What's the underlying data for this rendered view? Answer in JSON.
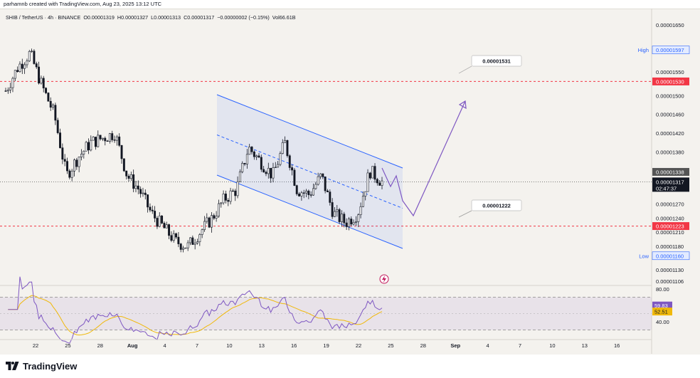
{
  "header": {
    "caption": "parhamnb created with TradingView.com, Aug 23, 2025 13:12 UTC"
  },
  "legend": {
    "symbol": "SHIB / TetherUS · 4h · BINANCE",
    "open": "O0.00001319",
    "high": "H0.00001327",
    "low": "L0.00001313",
    "close": "C0.00001317",
    "change": "−0.00000002 (−0.15%)",
    "volume": "Vol66.61B"
  },
  "price_axis": {
    "ticks": [
      "0.00001650",
      "0.00001600",
      "0.00001550",
      "0.00001500",
      "0.00001460",
      "0.00001420",
      "0.00001380",
      "0.00001338",
      "0.00001317",
      "0.00001270",
      "0.00001240",
      "0.00001210",
      "0.00001180",
      "0.00001130",
      "0.00001106"
    ],
    "high_label": "High",
    "high_value": "0.00001597",
    "low_label": "Low",
    "low_value": "0.00001160",
    "level_upper": "0.00001530",
    "level_lower": "0.00001223",
    "marker_338": "0.00001338",
    "last_price": "0.00001317",
    "countdown": "02:47:37"
  },
  "rsi_axis": {
    "ticks": [
      "80.00",
      "40.00"
    ],
    "rsi_value": "59.83",
    "ma_value": "52.51"
  },
  "annotations": {
    "upper_target": "0.00001531",
    "lower_target": "0.00001222"
  },
  "time_axis": {
    "labels": [
      "22",
      "25",
      "28",
      "Aug",
      "4",
      "7",
      "10",
      "13",
      "16",
      "19",
      "22",
      "25",
      "28",
      "Sep",
      "4",
      "7",
      "10",
      "13",
      "16"
    ]
  },
  "colors": {
    "background": "#f4f2ee",
    "up": "#ffffff",
    "down": "#131722",
    "channel": "#2962ff",
    "level_line": "#f23645",
    "projection": "#7e57c2",
    "rsi": "#7e57c2",
    "rsi_ma": "#f0b90b",
    "rsi_band": "#7e57c2"
  },
  "footer": {
    "brand": "TradingView"
  },
  "chart_data": {
    "type": "candlestick",
    "title": "SHIB / TetherUS · 4h · BINANCE",
    "x_labels": [
      "22",
      "25",
      "28",
      "Aug",
      "4",
      "7",
      "10",
      "13",
      "16",
      "19",
      "22",
      "25",
      "28",
      "Sep",
      "4",
      "7",
      "10",
      "13",
      "16"
    ],
    "ylim": [
      1.1e-05,
      1.67e-05
    ],
    "series": [
      {
        "name": "SHIB / TetherUS",
        "close_path": [
          [
            0,
            1.51e-05
          ],
          [
            1,
            1.56e-05
          ],
          [
            2,
            1.59e-05
          ],
          [
            3,
            1.52e-05
          ],
          [
            4,
            1.46e-05
          ],
          [
            5,
            1.33e-05
          ],
          [
            6,
            1.37e-05
          ],
          [
            7,
            1.4e-05
          ],
          [
            8,
            1.41e-05
          ],
          [
            9,
            1.42e-05
          ],
          [
            10,
            1.33e-05
          ],
          [
            11,
            1.3e-05
          ],
          [
            12,
            1.25e-05
          ],
          [
            13,
            1.22e-05
          ],
          [
            14,
            1.19e-05
          ],
          [
            15,
            1.18e-05
          ],
          [
            16,
            1.21e-05
          ],
          [
            17,
            1.24e-05
          ],
          [
            18,
            1.28e-05
          ],
          [
            19,
            1.3e-05
          ],
          [
            20,
            1.39e-05
          ],
          [
            21,
            1.36e-05
          ],
          [
            22,
            1.33e-05
          ],
          [
            23,
            1.4e-05
          ],
          [
            24,
            1.3e-05
          ],
          [
            25,
            1.29e-05
          ],
          [
            26,
            1.33e-05
          ],
          [
            27,
            1.25e-05
          ],
          [
            28,
            1.23e-05
          ],
          [
            29,
            1.25e-05
          ],
          [
            30,
            1.34e-05
          ],
          [
            31,
            1.317e-05
          ]
        ]
      }
    ],
    "levels": {
      "resistance": 1.53e-05,
      "support": 1.223e-05,
      "high": 1.597e-05,
      "low": 1.16e-05
    },
    "rsi": {
      "name": "RSI",
      "last": 59.83,
      "ma_last": 52.51,
      "upper_band": 70,
      "lower_band": 30,
      "axis_ticks": [
        80,
        40
      ]
    },
    "grid": false,
    "legend_position": "top-left"
  }
}
